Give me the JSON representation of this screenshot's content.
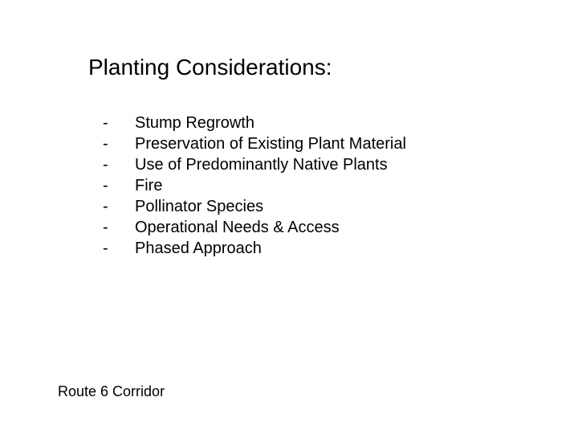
{
  "title": "Planting Considerations:",
  "bullet_char": "-",
  "items": [
    "Stump Regrowth",
    "Preservation of Existing Plant Material",
    "Use of Predominantly Native Plants",
    "Fire",
    "Pollinator Species",
    "Operational Needs & Access",
    "Phased Approach"
  ],
  "footer": "Route 6 Corridor",
  "style": {
    "background_color": "#ffffff",
    "text_color": "#000000",
    "title_fontsize": 28,
    "body_fontsize": 20,
    "footer_fontsize": 18,
    "line_height": 26,
    "font_family": "Arial"
  }
}
